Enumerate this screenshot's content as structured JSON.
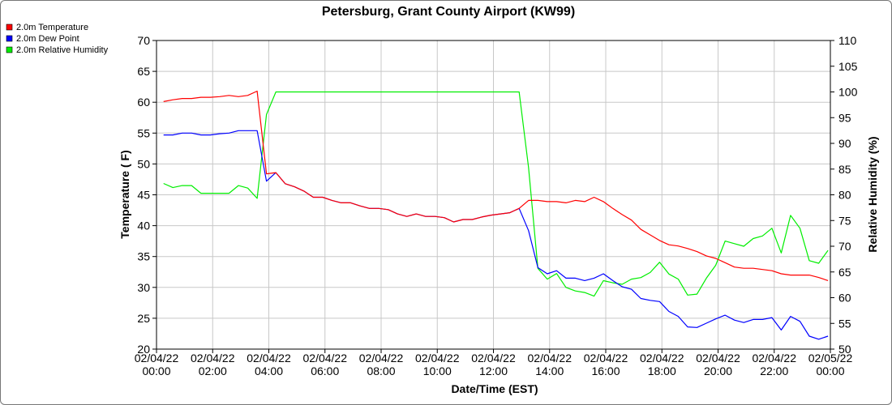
{
  "chart_data": {
    "type": "line",
    "title": "Petersburg, Grant County Airport (KW99)",
    "xlabel": "Date/Time (EST)",
    "ylabel_left": "Temperature ( F)",
    "ylabel_right": "Relative Humidity (%)",
    "ylim_left": [
      20,
      70
    ],
    "ylim_right": [
      50,
      110
    ],
    "xlim": [
      "02/04/22 00:00",
      "02/05/22 00:00"
    ],
    "grid": true,
    "legend_position": "top-left",
    "x_ticks": [
      {
        "date": "02/04/22",
        "time": "00:00"
      },
      {
        "date": "02/04/22",
        "time": "02:00"
      },
      {
        "date": "02/04/22",
        "time": "04:00"
      },
      {
        "date": "02/04/22",
        "time": "06:00"
      },
      {
        "date": "02/04/22",
        "time": "08:00"
      },
      {
        "date": "02/04/22",
        "time": "10:00"
      },
      {
        "date": "02/04/22",
        "time": "12:00"
      },
      {
        "date": "02/04/22",
        "time": "14:00"
      },
      {
        "date": "02/04/22",
        "time": "16:00"
      },
      {
        "date": "02/04/22",
        "time": "18:00"
      },
      {
        "date": "02/04/22",
        "time": "20:00"
      },
      {
        "date": "02/04/22",
        "time": "22:00"
      },
      {
        "date": "02/05/22",
        "time": "00:00"
      }
    ],
    "y_ticks_left": [
      "20",
      "25",
      "30",
      "35",
      "40",
      "45",
      "50",
      "55",
      "60",
      "65",
      "70"
    ],
    "y_ticks_right": [
      "50",
      "55",
      "60",
      "65",
      "70",
      "75",
      "80",
      "85",
      "90",
      "95",
      "100",
      "105",
      "110"
    ],
    "series": [
      {
        "name": "2.0m Temperature",
        "axis": "left",
        "color": "#ff0000",
        "points": [
          [
            "02/04/22 00:15",
            60.1
          ],
          [
            "02/04/22 00:35",
            60.4
          ],
          [
            "02/04/22 00:55",
            60.6
          ],
          [
            "02/04/22 01:15",
            60.6
          ],
          [
            "02/04/22 01:35",
            60.8
          ],
          [
            "02/04/22 01:55",
            60.8
          ],
          [
            "02/04/22 02:15",
            60.9
          ],
          [
            "02/04/22 02:35",
            61.1
          ],
          [
            "02/04/22 02:55",
            60.9
          ],
          [
            "02/04/22 03:15",
            61.1
          ],
          [
            "02/04/22 03:35",
            61.8
          ],
          [
            "02/04/22 03:55",
            48.4
          ],
          [
            "02/04/22 04:15",
            48.6
          ],
          [
            "02/04/22 04:35",
            46.8
          ],
          [
            "02/04/22 04:55",
            46.3
          ],
          [
            "02/04/22 05:15",
            45.6
          ],
          [
            "02/04/22 05:35",
            44.6
          ],
          [
            "02/04/22 05:55",
            44.6
          ],
          [
            "02/04/22 06:15",
            44.1
          ],
          [
            "02/04/22 06:35",
            43.7
          ],
          [
            "02/04/22 06:55",
            43.7
          ],
          [
            "02/04/22 07:15",
            43.2
          ],
          [
            "02/04/22 07:35",
            42.8
          ],
          [
            "02/04/22 07:55",
            42.8
          ],
          [
            "02/04/22 08:15",
            42.6
          ],
          [
            "02/04/22 08:35",
            41.9
          ],
          [
            "02/04/22 08:55",
            41.5
          ],
          [
            "02/04/22 09:15",
            41.9
          ],
          [
            "02/04/22 09:35",
            41.5
          ],
          [
            "02/04/22 09:55",
            41.5
          ],
          [
            "02/04/22 10:15",
            41.3
          ],
          [
            "02/04/22 10:35",
            40.6
          ],
          [
            "02/04/22 10:55",
            41.0
          ],
          [
            "02/04/22 11:15",
            41.0
          ],
          [
            "02/04/22 11:35",
            41.4
          ],
          [
            "02/04/22 11:55",
            41.7
          ],
          [
            "02/04/22 12:15",
            41.9
          ],
          [
            "02/04/22 12:35",
            42.1
          ],
          [
            "02/04/22 12:55",
            42.8
          ],
          [
            "02/04/22 13:15",
            44.1
          ],
          [
            "02/04/22 13:35",
            44.1
          ],
          [
            "02/04/22 13:55",
            43.9
          ],
          [
            "02/04/22 14:15",
            43.9
          ],
          [
            "02/04/22 14:35",
            43.7
          ],
          [
            "02/04/22 14:55",
            44.1
          ],
          [
            "02/04/22 15:15",
            43.9
          ],
          [
            "02/04/22 15:35",
            44.6
          ],
          [
            "02/04/22 15:55",
            43.9
          ],
          [
            "02/04/22 16:15",
            42.8
          ],
          [
            "02/04/22 16:35",
            41.8
          ],
          [
            "02/04/22 16:55",
            40.9
          ],
          [
            "02/04/22 17:15",
            39.4
          ],
          [
            "02/04/22 17:35",
            38.5
          ],
          [
            "02/04/22 17:55",
            37.6
          ],
          [
            "02/04/22 18:15",
            36.9
          ],
          [
            "02/04/22 18:35",
            36.7
          ],
          [
            "02/04/22 18:55",
            36.3
          ],
          [
            "02/04/22 19:15",
            35.8
          ],
          [
            "02/04/22 19:35",
            35.1
          ],
          [
            "02/04/22 19:55",
            34.7
          ],
          [
            "02/04/22 20:15",
            34.0
          ],
          [
            "02/04/22 20:35",
            33.3
          ],
          [
            "02/04/22 20:55",
            33.1
          ],
          [
            "02/04/22 21:15",
            33.1
          ],
          [
            "02/04/22 21:35",
            32.9
          ],
          [
            "02/04/22 21:55",
            32.7
          ],
          [
            "02/04/22 22:15",
            32.2
          ],
          [
            "02/04/22 22:35",
            32.0
          ],
          [
            "02/04/22 22:55",
            32.0
          ],
          [
            "02/04/22 23:15",
            32.0
          ],
          [
            "02/04/22 23:35",
            31.6
          ],
          [
            "02/04/22 23:55",
            31.1
          ]
        ]
      },
      {
        "name": "2.0m Dew Point",
        "axis": "left",
        "color": "#0000ff",
        "points": [
          [
            "02/04/22 00:15",
            54.7
          ],
          [
            "02/04/22 00:35",
            54.7
          ],
          [
            "02/04/22 00:55",
            55.0
          ],
          [
            "02/04/22 01:15",
            55.0
          ],
          [
            "02/04/22 01:35",
            54.7
          ],
          [
            "02/04/22 01:55",
            54.7
          ],
          [
            "02/04/22 02:15",
            54.9
          ],
          [
            "02/04/22 02:35",
            55.0
          ],
          [
            "02/04/22 02:55",
            55.4
          ],
          [
            "02/04/22 03:15",
            55.4
          ],
          [
            "02/04/22 03:35",
            55.4
          ],
          [
            "02/04/22 03:55",
            47.2
          ],
          [
            "02/04/22 04:15",
            48.6
          ],
          [
            "02/04/22 04:35",
            46.8
          ],
          [
            "02/04/22 04:55",
            46.3
          ],
          [
            "02/04/22 05:15",
            45.6
          ],
          [
            "02/04/22 05:35",
            44.6
          ],
          [
            "02/04/22 05:55",
            44.6
          ],
          [
            "02/04/22 06:15",
            44.1
          ],
          [
            "02/04/22 06:35",
            43.7
          ],
          [
            "02/04/22 06:55",
            43.7
          ],
          [
            "02/04/22 07:15",
            43.2
          ],
          [
            "02/04/22 07:35",
            42.8
          ],
          [
            "02/04/22 07:55",
            42.8
          ],
          [
            "02/04/22 08:15",
            42.6
          ],
          [
            "02/04/22 08:35",
            41.9
          ],
          [
            "02/04/22 08:55",
            41.5
          ],
          [
            "02/04/22 09:15",
            41.9
          ],
          [
            "02/04/22 09:35",
            41.5
          ],
          [
            "02/04/22 09:55",
            41.5
          ],
          [
            "02/04/22 10:15",
            41.3
          ],
          [
            "02/04/22 10:35",
            40.6
          ],
          [
            "02/04/22 10:55",
            41.0
          ],
          [
            "02/04/22 11:15",
            41.0
          ],
          [
            "02/04/22 11:35",
            41.4
          ],
          [
            "02/04/22 11:55",
            41.7
          ],
          [
            "02/04/22 12:15",
            41.9
          ],
          [
            "02/04/22 12:35",
            42.1
          ],
          [
            "02/04/22 12:55",
            42.8
          ],
          [
            "02/04/22 13:15",
            39.2
          ],
          [
            "02/04/22 13:35",
            33.2
          ],
          [
            "02/04/22 13:55",
            32.2
          ],
          [
            "02/04/22 14:15",
            32.7
          ],
          [
            "02/04/22 14:35",
            31.5
          ],
          [
            "02/04/22 14:55",
            31.5
          ],
          [
            "02/04/22 15:15",
            31.1
          ],
          [
            "02/04/22 15:35",
            31.5
          ],
          [
            "02/04/22 15:55",
            32.2
          ],
          [
            "02/04/22 16:15",
            31.1
          ],
          [
            "02/04/22 16:35",
            30.1
          ],
          [
            "02/04/22 16:55",
            29.7
          ],
          [
            "02/04/22 17:15",
            28.2
          ],
          [
            "02/04/22 17:35",
            27.9
          ],
          [
            "02/04/22 17:55",
            27.7
          ],
          [
            "02/04/22 18:15",
            26.1
          ],
          [
            "02/04/22 18:35",
            25.3
          ],
          [
            "02/04/22 18:55",
            23.6
          ],
          [
            "02/04/22 19:15",
            23.5
          ],
          [
            "02/04/22 19:35",
            24.2
          ],
          [
            "02/04/22 19:55",
            24.9
          ],
          [
            "02/04/22 20:15",
            25.5
          ],
          [
            "02/04/22 20:35",
            24.7
          ],
          [
            "02/04/22 20:55",
            24.3
          ],
          [
            "02/04/22 21:15",
            24.8
          ],
          [
            "02/04/22 21:35",
            24.8
          ],
          [
            "02/04/22 21:55",
            25.1
          ],
          [
            "02/04/22 22:15",
            23.1
          ],
          [
            "02/04/22 22:35",
            25.3
          ],
          [
            "02/04/22 22:55",
            24.5
          ],
          [
            "02/04/22 23:15",
            22.1
          ],
          [
            "02/04/22 23:35",
            21.6
          ],
          [
            "02/04/22 23:55",
            22.1
          ]
        ]
      },
      {
        "name": "2.0m Relative Humidity",
        "axis": "right",
        "color": "#00ee00",
        "points": [
          [
            "02/04/22 00:15",
            82.2
          ],
          [
            "02/04/22 00:35",
            81.4
          ],
          [
            "02/04/22 00:55",
            81.8
          ],
          [
            "02/04/22 01:15",
            81.8
          ],
          [
            "02/04/22 01:35",
            80.3
          ],
          [
            "02/04/22 01:55",
            80.3
          ],
          [
            "02/04/22 02:15",
            80.3
          ],
          [
            "02/04/22 02:35",
            80.3
          ],
          [
            "02/04/22 02:55",
            81.8
          ],
          [
            "02/04/22 03:15",
            81.3
          ],
          [
            "02/04/22 03:35",
            79.3
          ],
          [
            "02/04/22 03:55",
            95.6
          ],
          [
            "02/04/22 04:15",
            100
          ],
          [
            "02/04/22 12:55",
            100
          ],
          [
            "02/04/22 13:15",
            85.3
          ],
          [
            "02/04/22 13:35",
            65.7
          ],
          [
            "02/04/22 13:55",
            63.6
          ],
          [
            "02/04/22 14:15",
            64.7
          ],
          [
            "02/04/22 14:35",
            62.0
          ],
          [
            "02/04/22 14:55",
            61.3
          ],
          [
            "02/04/22 15:15",
            61.0
          ],
          [
            "02/04/22 15:35",
            60.3
          ],
          [
            "02/04/22 15:55",
            63.3
          ],
          [
            "02/04/22 16:15",
            62.9
          ],
          [
            "02/04/22 16:35",
            62.6
          ],
          [
            "02/04/22 16:55",
            63.6
          ],
          [
            "02/04/22 17:15",
            63.9
          ],
          [
            "02/04/22 17:35",
            64.9
          ],
          [
            "02/04/22 17:55",
            66.9
          ],
          [
            "02/04/22 18:15",
            64.6
          ],
          [
            "02/04/22 18:35",
            63.6
          ],
          [
            "02/04/22 18:55",
            60.5
          ],
          [
            "02/04/22 19:15",
            60.7
          ],
          [
            "02/04/22 19:35",
            63.8
          ],
          [
            "02/04/22 19:55",
            66.3
          ],
          [
            "02/04/22 20:15",
            71.0
          ],
          [
            "02/04/22 20:35",
            70.5
          ],
          [
            "02/04/22 20:55",
            70.0
          ],
          [
            "02/04/22 21:15",
            71.5
          ],
          [
            "02/04/22 21:35",
            72.0
          ],
          [
            "02/04/22 21:55",
            73.5
          ],
          [
            "02/04/22 22:15",
            68.7
          ],
          [
            "02/04/22 22:35",
            76.0
          ],
          [
            "02/04/22 22:55",
            73.5
          ],
          [
            "02/04/22 23:15",
            67.2
          ],
          [
            "02/04/22 23:35",
            66.7
          ],
          [
            "02/04/22 23:55",
            69.2
          ]
        ]
      }
    ]
  }
}
